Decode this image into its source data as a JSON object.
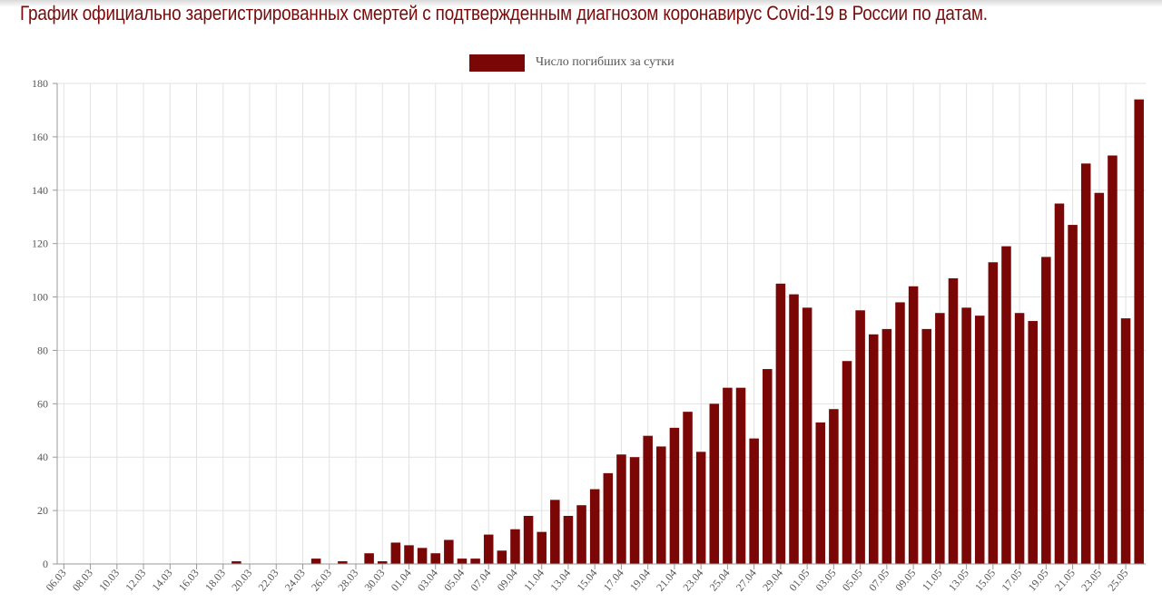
{
  "page": {
    "title": "График официально зарегистрированных смертей с подтвержденным диагнозом коронавирус Covid-19 в России по датам."
  },
  "colors": {
    "title": "#7a0a0a",
    "bar": "#7a0606",
    "grid": "#e2e2e2",
    "axis": "#999999",
    "text": "#555555"
  },
  "chart_data": {
    "type": "bar",
    "title": "График официально зарегистрированных смертей с подтвержденным диагнозом коронавирус Covid-19 в России по датам.",
    "xlabel": "",
    "ylabel": "",
    "ylim": [
      0,
      180
    ],
    "yticks": [
      0,
      20,
      40,
      60,
      80,
      100,
      120,
      140,
      160,
      180
    ],
    "grid": true,
    "legend_position": "top-center",
    "categories": [
      "06.03",
      "07.03",
      "08.03",
      "09.03",
      "10.03",
      "11.03",
      "12.03",
      "13.03",
      "14.03",
      "15.03",
      "16.03",
      "17.03",
      "18.03",
      "19.03",
      "20.03",
      "21.03",
      "22.03",
      "23.03",
      "24.03",
      "25.03",
      "26.03",
      "27.03",
      "28.03",
      "29.03",
      "30.03",
      "31.03",
      "01.04",
      "02.04",
      "03.04",
      "04.04",
      "05.04",
      "06.04",
      "07.04",
      "08.04",
      "09.04",
      "10.04",
      "11.04",
      "12.04",
      "13.04",
      "14.04",
      "15.04",
      "16.04",
      "17.04",
      "18.04",
      "19.04",
      "20.04",
      "21.04",
      "22.04",
      "23.04",
      "24.04",
      "25.04",
      "26.04",
      "27.04",
      "28.04",
      "29.04",
      "30.04",
      "01.05",
      "02.05",
      "03.05",
      "04.05",
      "05.05",
      "06.05",
      "07.05",
      "08.05",
      "09.05",
      "10.05",
      "11.05",
      "12.05",
      "13.05",
      "14.05",
      "15.05",
      "16.05",
      "17.05",
      "18.05",
      "19.05",
      "20.05",
      "21.05",
      "22.05",
      "23.05",
      "24.05",
      "25.05",
      "26.05"
    ],
    "tick_labels": [
      "06.03",
      "08.03",
      "10.03",
      "12.03",
      "14.03",
      "16.03",
      "18.03",
      "20.03",
      "22.03",
      "24.03",
      "26.03",
      "28.03",
      "30.03",
      "01.04",
      "03.04",
      "05.04",
      "07.04",
      "09.04",
      "11.04",
      "13.04",
      "15.04",
      "17.04",
      "19.04",
      "21.04",
      "23.04",
      "25.04",
      "27.04",
      "29.04",
      "01.05",
      "03.05",
      "05.05",
      "07.05",
      "09.05",
      "11.05",
      "13.05",
      "15.05",
      "17.05",
      "19.05",
      "21.05",
      "23.05",
      "25.05"
    ],
    "series": [
      {
        "name": "Число погибших за сутки",
        "color": "#7a0606",
        "values": [
          0,
          0,
          0,
          0,
          0,
          0,
          0,
          0,
          0,
          0,
          0,
          0,
          0,
          1,
          0,
          0,
          0,
          0,
          0,
          2,
          0,
          1,
          0,
          4,
          1,
          8,
          7,
          6,
          4,
          9,
          2,
          2,
          11,
          5,
          13,
          18,
          12,
          24,
          18,
          22,
          28,
          34,
          41,
          40,
          48,
          44,
          51,
          57,
          42,
          60,
          66,
          66,
          47,
          73,
          105,
          101,
          96,
          53,
          58,
          76,
          95,
          86,
          88,
          98,
          104,
          88,
          94,
          107,
          96,
          93,
          113,
          119,
          94,
          91,
          115,
          135,
          127,
          150,
          139,
          153,
          92,
          174
        ]
      }
    ]
  }
}
